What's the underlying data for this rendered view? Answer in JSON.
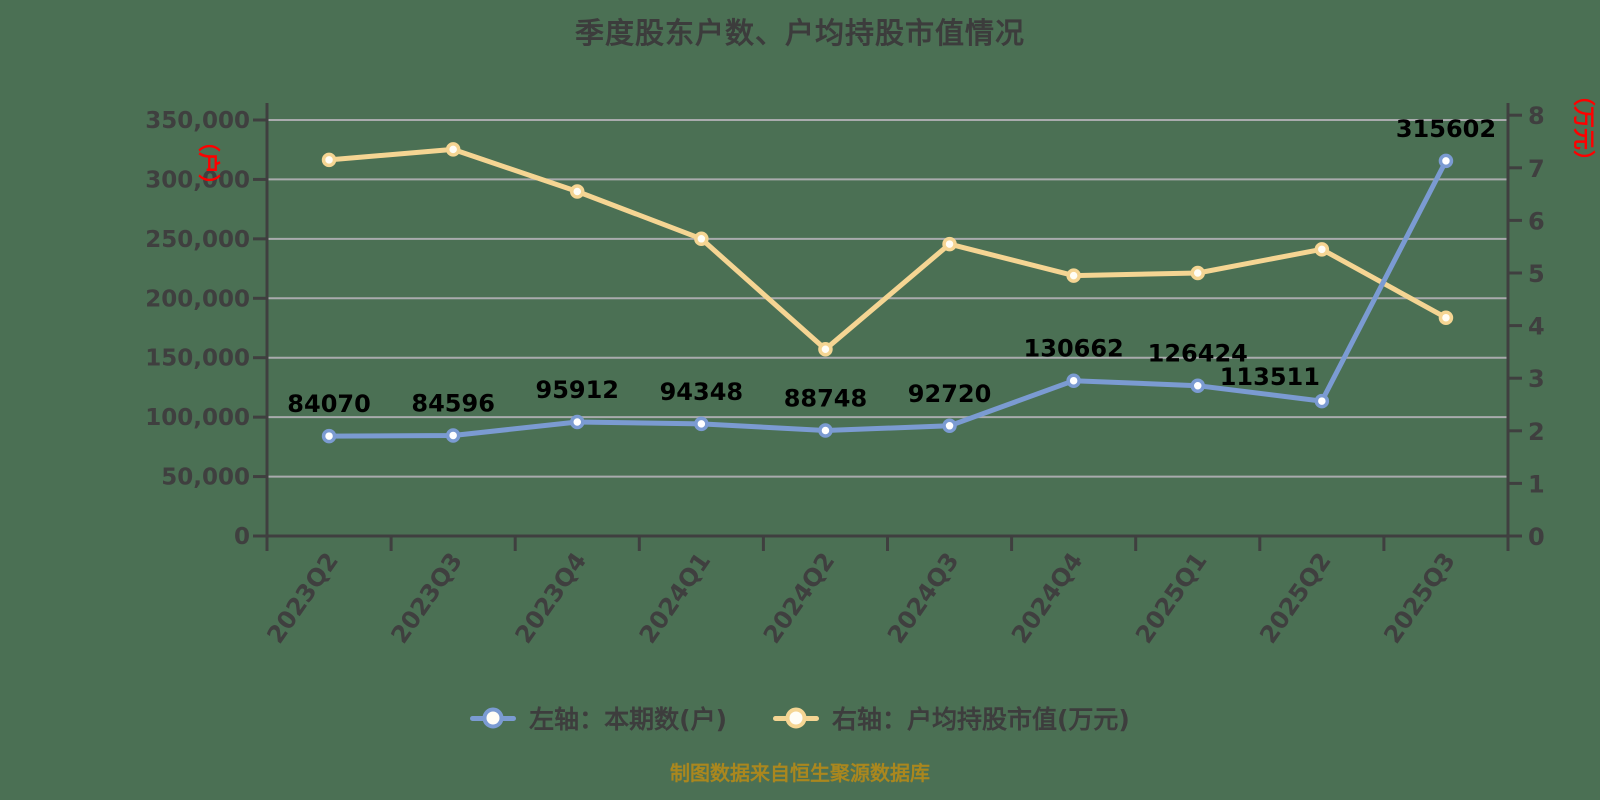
{
  "colors": {
    "background": "#4b7054",
    "title": "#3c3c3c",
    "axis": "#3f3f3f",
    "grid": "#a9abad",
    "tick_text": "#3f3f3f",
    "data_label": "#000000",
    "axis_unit_red": "#fe0000",
    "legend_text": "#3d3d3d",
    "caption": "#aa871e",
    "blue_series": "#7b9bd2",
    "yellow_series": "#f5d593"
  },
  "chart_data": {
    "type": "line",
    "title": "季度股东户数、户均持股市值情况",
    "categories": [
      "2023Q2",
      "2023Q3",
      "2023Q4",
      "2024Q1",
      "2024Q2",
      "2024Q3",
      "2024Q4",
      "2025Q1",
      "2025Q2",
      "2025Q3"
    ],
    "series": [
      {
        "name": "左轴：本期数(户)",
        "axis": "left",
        "color": "#7b9bd2",
        "marker_fill": "#ffffff",
        "show_labels": true,
        "values": [
          84070,
          84596,
          95912,
          94348,
          88748,
          92720,
          130662,
          126424,
          113511,
          315602
        ]
      },
      {
        "name": "右轴：户均持股市值(万元)",
        "axis": "right",
        "color": "#f5d593",
        "marker_fill": "#fffdf5",
        "show_labels": false,
        "values": [
          7.15,
          7.35,
          6.55,
          5.65,
          3.55,
          5.55,
          4.95,
          5.0,
          5.45,
          4.15
        ]
      }
    ],
    "left_axis": {
      "unit_label": "（户）",
      "min": 0,
      "max": 350000,
      "step": 50000,
      "tick_labels": [
        "0",
        "50,000",
        "100,000",
        "150,000",
        "200,000",
        "250,000",
        "300,000",
        "350,000"
      ]
    },
    "right_axis": {
      "unit_label": "（万元）",
      "min": 0,
      "max": 8,
      "step": 1,
      "tick_labels": [
        "0",
        "1",
        "2",
        "3",
        "4",
        "5",
        "6",
        "7",
        "8"
      ]
    },
    "grid": true,
    "legend_position": "bottom"
  },
  "legend": {
    "items": [
      {
        "label": "左轴：本期数(户)",
        "color": "#7b9bd2"
      },
      {
        "label": "右轴：户均持股市值(万元)",
        "color": "#f5d593"
      }
    ]
  },
  "caption": "制图数据来自恒生聚源数据库"
}
